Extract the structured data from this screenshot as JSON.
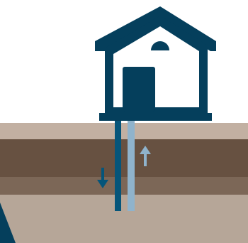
{
  "colors": {
    "background": "#ffffff",
    "house": "#053f5c",
    "ground_surface": "#c2b0a2",
    "soil_dark": "#675141",
    "soil_mid": "#7c6757",
    "soil_bottom": "#b6a698",
    "pipe_supply": "#05557a",
    "pipe_return": "#8fb3cc",
    "arrow_down": "#05557a",
    "arrow_up": "#8fb3cc",
    "corner_shape": "#053f5c"
  },
  "icons": {
    "house": "house-icon",
    "flow_down": "arrow-down-icon",
    "flow_up": "arrow-up-icon"
  }
}
